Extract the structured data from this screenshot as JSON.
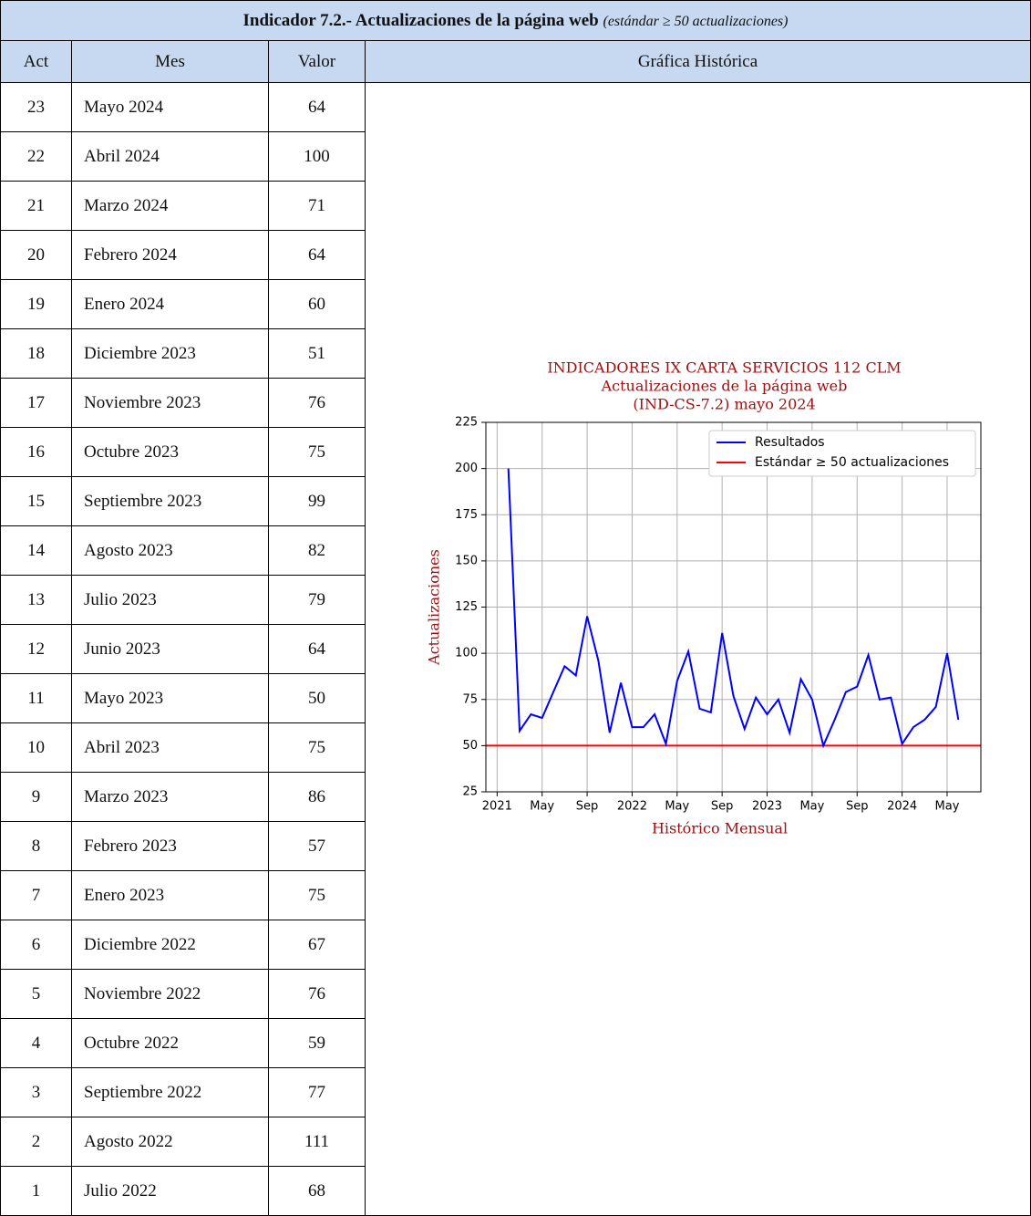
{
  "header": {
    "title": "Indicador 7.2.- Actualizaciones de la página web",
    "note": "(estándar ≥ 50 actualizaciones)"
  },
  "table": {
    "columns": [
      "Act",
      "Mes",
      "Valor",
      "Gráfica Histórica"
    ],
    "rows": [
      [
        23,
        "Mayo 2024",
        64
      ],
      [
        22,
        "Abril 2024",
        100
      ],
      [
        21,
        "Marzo 2024",
        71
      ],
      [
        20,
        "Febrero 2024",
        64
      ],
      [
        19,
        "Enero 2024",
        60
      ],
      [
        18,
        "Diciembre 2023",
        51
      ],
      [
        17,
        "Noviembre 2023",
        76
      ],
      [
        16,
        "Octubre 2023",
        75
      ],
      [
        15,
        "Septiembre 2023",
        99
      ],
      [
        14,
        "Agosto 2023",
        82
      ],
      [
        13,
        "Julio 2023",
        79
      ],
      [
        12,
        "Junio 2023",
        64
      ],
      [
        11,
        "Mayo 2023",
        50
      ],
      [
        10,
        "Abril 2023",
        75
      ],
      [
        9,
        "Marzo 2023",
        86
      ],
      [
        8,
        "Febrero 2023",
        57
      ],
      [
        7,
        "Enero 2023",
        75
      ],
      [
        6,
        "Diciembre 2022",
        67
      ],
      [
        5,
        "Noviembre 2022",
        76
      ],
      [
        4,
        "Octubre 2022",
        59
      ],
      [
        3,
        "Septiembre 2022",
        77
      ],
      [
        2,
        "Agosto 2022",
        111
      ],
      [
        1,
        "Julio 2022",
        68
      ]
    ]
  },
  "chart_data": {
    "type": "line",
    "title": [
      "INDICADORES IX CARTA SERVICIOS 112 CLM",
      "Actualizaciones de la página web",
      "(IND-CS-7.2) mayo 2024"
    ],
    "xlabel": "Histórico Mensual",
    "ylabel": "Actualizaciones",
    "x": [
      "2021-01",
      "2021-02",
      "2021-03",
      "2021-04",
      "2021-05",
      "2021-06",
      "2021-07",
      "2021-08",
      "2021-09",
      "2021-10",
      "2021-11",
      "2021-12",
      "2022-01",
      "2022-02",
      "2022-03",
      "2022-04",
      "2022-05",
      "2022-06",
      "2022-07",
      "2022-08",
      "2022-09",
      "2022-10",
      "2022-11",
      "2022-12",
      "2023-01",
      "2023-02",
      "2023-03",
      "2023-04",
      "2023-05",
      "2023-06",
      "2023-07",
      "2023-08",
      "2023-09",
      "2023-10",
      "2023-11",
      "2023-12",
      "2024-01",
      "2024-02",
      "2024-03",
      "2024-04",
      "2024-05"
    ],
    "series": [
      {
        "name": "Resultados",
        "color": "#0000ff",
        "values": [
          200,
          58,
          67,
          65,
          79,
          93,
          88,
          120,
          96,
          57,
          84,
          60,
          60,
          67,
          51,
          85,
          101,
          70,
          68,
          111,
          77,
          59,
          76,
          67,
          75,
          57,
          86,
          75,
          50,
          64,
          79,
          82,
          99,
          75,
          76,
          51,
          60,
          64,
          71,
          100,
          64
        ]
      }
    ],
    "standard": {
      "name": "Estándar ≥ 50 actualizaciones",
      "color": "#ff0000",
      "value": 50
    },
    "xlim": [
      "2020-12",
      "2024-08"
    ],
    "xticks": [
      {
        "value": "2021-01",
        "label": "2021"
      },
      {
        "value": "2021-05",
        "label": "May"
      },
      {
        "value": "2021-09",
        "label": "Sep"
      },
      {
        "value": "2022-01",
        "label": "2022"
      },
      {
        "value": "2022-05",
        "label": "May"
      },
      {
        "value": "2022-09",
        "label": "Sep"
      },
      {
        "value": "2023-01",
        "label": "2023"
      },
      {
        "value": "2023-05",
        "label": "May"
      },
      {
        "value": "2023-09",
        "label": "Sep"
      },
      {
        "value": "2024-01",
        "label": "2024"
      },
      {
        "value": "2024-05",
        "label": "May"
      }
    ],
    "ylim": [
      25,
      225
    ],
    "yticks": [
      25,
      50,
      75,
      100,
      125,
      150,
      175,
      200,
      225
    ],
    "grid": true,
    "legend": "upper right"
  }
}
